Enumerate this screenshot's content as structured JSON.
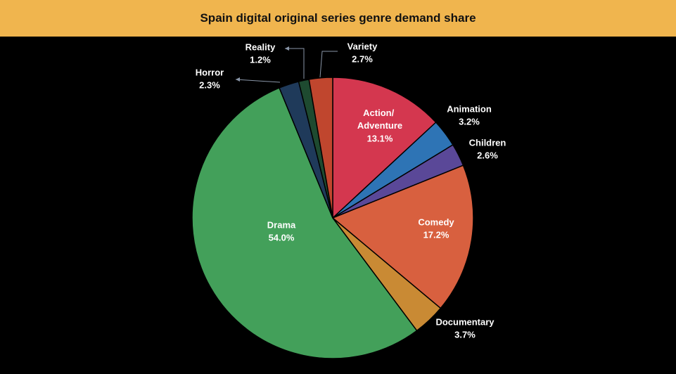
{
  "chart_data": {
    "type": "pie",
    "title": "Spain digital original series genre demand share",
    "categories": [
      "Action/ Adventure",
      "Animation",
      "Children",
      "Comedy",
      "Documentary",
      "Drama",
      "Horror",
      "Reality",
      "Variety"
    ],
    "values": [
      13.1,
      3.2,
      2.6,
      17.2,
      3.7,
      54.0,
      2.3,
      1.2,
      2.7
    ],
    "value_labels": [
      "13.1%",
      "3.2%",
      "2.6%",
      "17.2%",
      "3.7%",
      "54.0%",
      "2.3%",
      "1.2%",
      "2.7%"
    ],
    "colors": [
      "#d4374f",
      "#2e74b5",
      "#5a4898",
      "#d8603f",
      "#c98a34",
      "#43a05a",
      "#1f3a5a",
      "#1e4a30",
      "#c0462e"
    ]
  }
}
